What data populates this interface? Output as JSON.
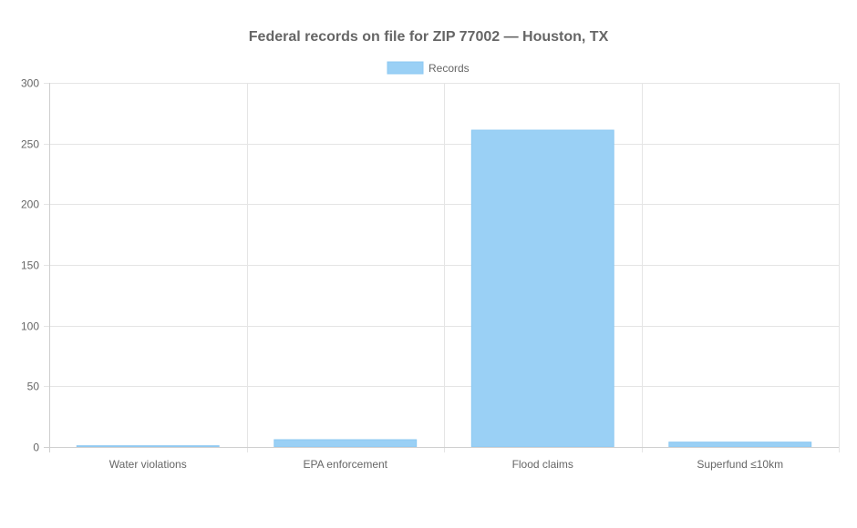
{
  "chart_data": {
    "type": "bar",
    "title": "Federal records on file for ZIP 77002 — Houston, TX",
    "categories": [
      "Water violations",
      "EPA enforcement",
      "Flood claims",
      "Superfund ≤10km"
    ],
    "series": [
      {
        "name": "Records",
        "values": [
          1,
          6,
          261,
          4
        ],
        "color": "#9ad0f5",
        "border_color": "#8cc8f2"
      }
    ],
    "ylim": [
      0,
      300
    ],
    "yticks": [
      0,
      50,
      100,
      150,
      200,
      250,
      300
    ],
    "grid": true,
    "legend_position": "top"
  }
}
